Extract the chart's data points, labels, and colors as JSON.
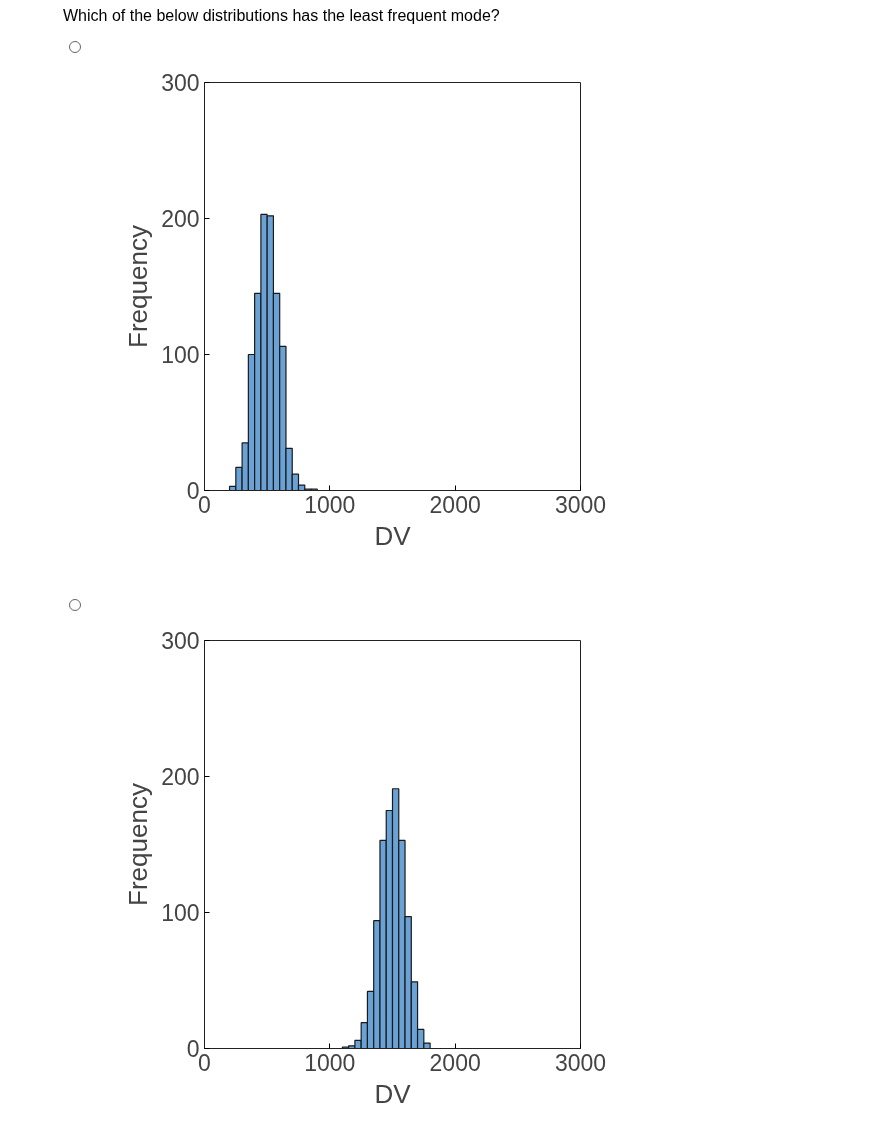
{
  "chart_data": [
    {
      "type": "histogram",
      "title": "Which of the below distributions has the least frequent mode?",
      "xlabel": "DV",
      "ylabel": "Frequency",
      "color": "#6aa2d6",
      "grid": false,
      "bins": [
        200,
        250,
        300,
        350,
        400,
        450,
        500,
        550,
        600,
        650,
        700,
        750,
        800,
        850,
        900
      ],
      "values": [
        3,
        17,
        35,
        100,
        145,
        203,
        202,
        145,
        106,
        31,
        12,
        4,
        1,
        1
      ],
      "xlim": [
        0,
        3000
      ],
      "xticks": [
        0,
        1000,
        2000,
        3000
      ],
      "ylim": [
        0,
        300
      ],
      "yticks": [
        0,
        100,
        200,
        300
      ]
    },
    {
      "type": "histogram",
      "xlabel": "DV",
      "ylabel": "Frequency",
      "color": "#6aa2d6",
      "grid": false,
      "bins": [
        1100,
        1150,
        1200,
        1250,
        1300,
        1350,
        1400,
        1450,
        1500,
        1550,
        1600,
        1650,
        1700,
        1750,
        1800
      ],
      "values": [
        1,
        2,
        6,
        19,
        42,
        94,
        153,
        175,
        191,
        153,
        97,
        49,
        14,
        4
      ],
      "xlim": [
        0,
        3000
      ],
      "xticks": [
        0,
        1000,
        2000,
        3000
      ],
      "ylim": [
        0,
        300
      ],
      "yticks": [
        0,
        100,
        200,
        300
      ]
    }
  ]
}
